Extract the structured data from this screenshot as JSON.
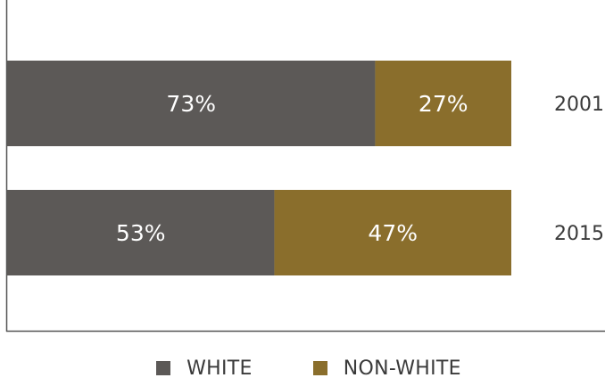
{
  "chart_data": {
    "type": "bar",
    "orientation": "horizontal",
    "stacked": true,
    "categories": [
      "2001",
      "2015"
    ],
    "series": [
      {
        "name": "WHITE",
        "color": "#5c5957",
        "values": [
          73,
          53
        ],
        "labels": [
          "73%",
          "53%"
        ]
      },
      {
        "name": "NON-WHITE",
        "color": "#8a6e2c",
        "values": [
          27,
          47
        ],
        "labels": [
          "27%",
          "47%"
        ]
      }
    ],
    "xlim": [
      0,
      100
    ],
    "grid": false,
    "legend": "bottom"
  }
}
